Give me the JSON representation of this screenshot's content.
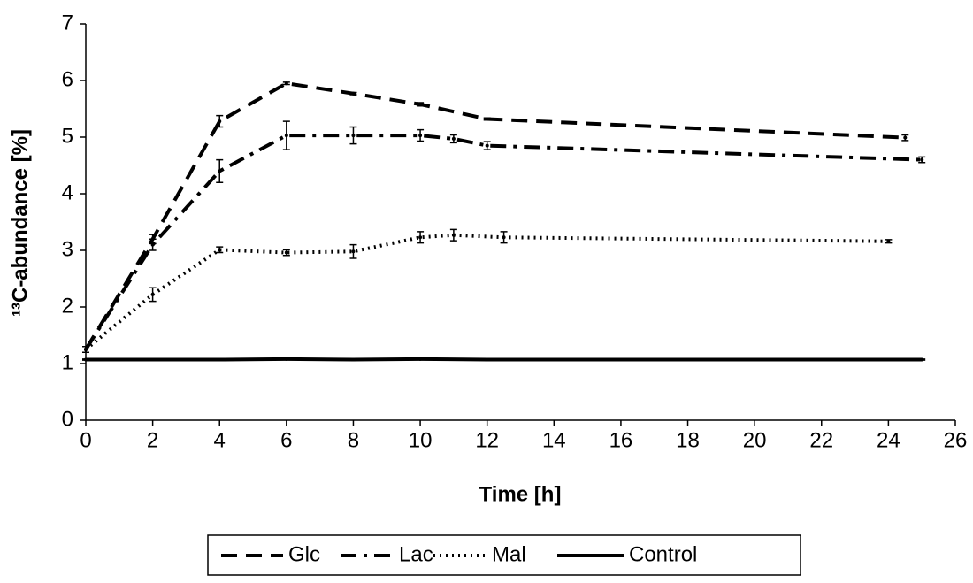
{
  "chart_data": {
    "type": "line",
    "xlabel": "Time [h]",
    "ylabel": "¹³C-abundance [%]",
    "xlim": [
      0,
      26
    ],
    "xticks": [
      0,
      2,
      4,
      6,
      8,
      10,
      12,
      14,
      16,
      18,
      20,
      22,
      24,
      26
    ],
    "ylim": [
      0,
      7
    ],
    "yticks": [
      0,
      1,
      2,
      3,
      4,
      5,
      6,
      7
    ],
    "legend": "bottom",
    "series": [
      {
        "name": "Glc",
        "color": "#000000",
        "dash": "18,10",
        "x": [
          0,
          2,
          4,
          6,
          8,
          10,
          12,
          24.5
        ],
        "values": [
          1.25,
          3.2,
          5.28,
          5.95,
          5.77,
          5.58,
          5.32,
          4.99
        ],
        "errors": [
          0.05,
          0.08,
          0.1,
          0.02,
          0.02,
          0.03,
          0.02,
          0.05
        ]
      },
      {
        "name": "Lac",
        "color": "#000000",
        "dash": "18,8,4,8",
        "x": [
          0,
          2,
          4,
          6,
          8,
          10,
          11,
          12,
          25
        ],
        "values": [
          1.25,
          3.1,
          4.4,
          5.03,
          5.03,
          5.03,
          4.97,
          4.85,
          4.6
        ],
        "errors": [
          0.05,
          0.1,
          0.2,
          0.25,
          0.15,
          0.1,
          0.07,
          0.07,
          0.05
        ]
      },
      {
        "name": "Mal",
        "color": "#000000",
        "dash": "2,5",
        "x": [
          0,
          2,
          4,
          6,
          8,
          10,
          11,
          12.5,
          24
        ],
        "values": [
          1.25,
          2.22,
          3.01,
          2.96,
          2.98,
          3.23,
          3.27,
          3.23,
          3.16
        ],
        "errors": [
          0.05,
          0.12,
          0.05,
          0.05,
          0.12,
          0.1,
          0.1,
          0.1,
          0.03
        ]
      },
      {
        "name": "Control",
        "color": "#000000",
        "dash": "none",
        "x": [
          0,
          2,
          4,
          6,
          8,
          10,
          12,
          25
        ],
        "values": [
          1.07,
          1.07,
          1.07,
          1.08,
          1.07,
          1.08,
          1.07,
          1.07
        ],
        "errors": [
          0.01,
          0.01,
          0.01,
          0.01,
          0.01,
          0.01,
          0.01,
          0.01
        ]
      }
    ]
  }
}
